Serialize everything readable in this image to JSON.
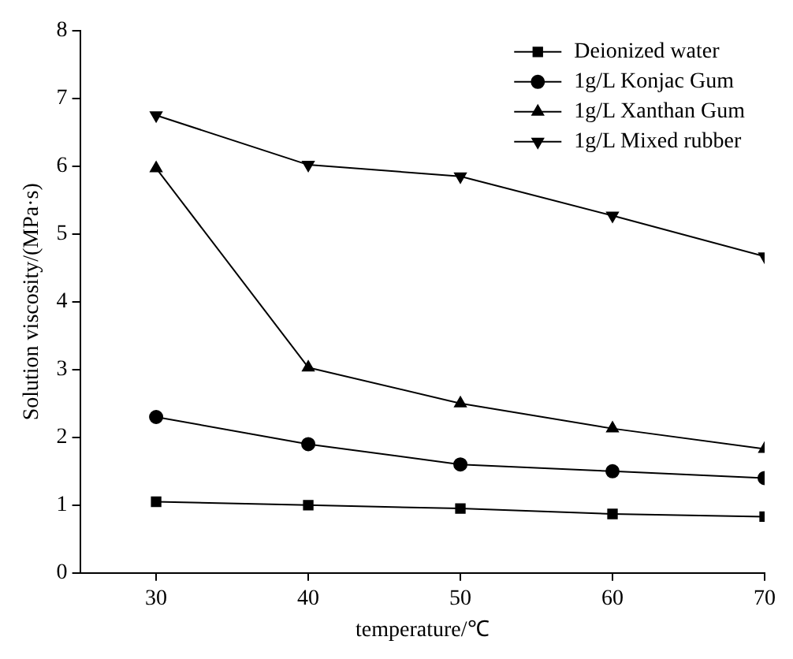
{
  "chart_data": {
    "type": "line",
    "xlabel": "temperature/℃",
    "ylabel": "Solution viscosity/(MPa·s)",
    "x": [
      30,
      40,
      50,
      60,
      70
    ],
    "xlim": [
      25,
      70
    ],
    "xticks": [
      30,
      40,
      50,
      60,
      70
    ],
    "ylim": [
      0,
      8
    ],
    "yticks": [
      0,
      1,
      2,
      3,
      4,
      5,
      6,
      7,
      8
    ],
    "grid": false,
    "legend": "top right",
    "series": [
      {
        "name": "Deionized water",
        "color": "#000000",
        "marker": "square",
        "values": [
          1.05,
          1.0,
          0.95,
          0.87,
          0.83
        ]
      },
      {
        "name": "1g/L Konjac Gum",
        "color": "#000000",
        "marker": "circle",
        "values": [
          2.3,
          1.9,
          1.6,
          1.5,
          1.4
        ]
      },
      {
        "name": "1g/L Xanthan Gum",
        "color": "#000000",
        "marker": "triangle",
        "values": [
          5.97,
          3.03,
          2.5,
          2.13,
          1.83
        ]
      },
      {
        "name": "1g/L Mixed rubber",
        "color": "#000000",
        "marker": "triangle-down",
        "values": [
          6.75,
          6.02,
          5.85,
          5.27,
          4.67
        ]
      }
    ]
  }
}
